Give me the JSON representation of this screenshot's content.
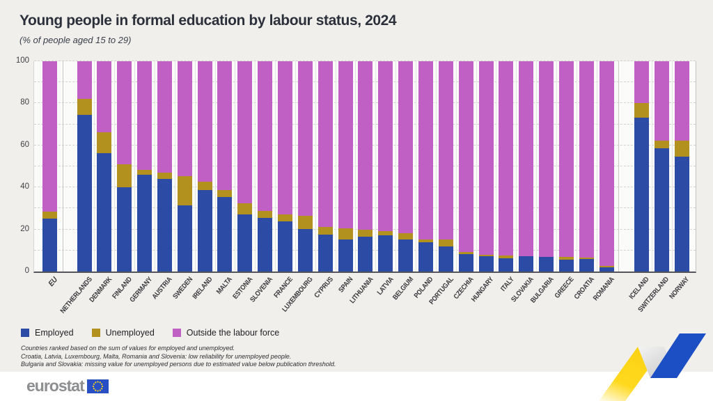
{
  "header": {
    "title": "Young people in formal education by labour status, 2024",
    "subtitle": "(% of people aged 15 to 29)"
  },
  "chart_data": {
    "type": "bar",
    "stacked": true,
    "unit": "% of people aged 15 to 29",
    "title": "Young people in formal education by labour status, 2024",
    "ylim": [
      0,
      100
    ],
    "yticks": [
      0,
      20,
      40,
      60,
      80,
      100
    ],
    "grid": "horizontal dashed lines every 10 units",
    "legend_position": "bottom-left",
    "categories": [
      "EU",
      "NETHERLANDS",
      "DENMARK",
      "FINLAND",
      "GERMANY",
      "AUSTRIA",
      "SWEDEN",
      "IRELAND",
      "MALTA",
      "ESTONIA",
      "SLOVENIA",
      "FRANCE",
      "LUXEMBOURG",
      "CYPRUS",
      "SPAIN",
      "LITHUANIA",
      "LATVIA",
      "BELGIUM",
      "POLAND",
      "PORTUGAL",
      "CZECHIA",
      "HUNGARY",
      "ITALY",
      "SLOVAKIA",
      "BULGARIA",
      "GREECE",
      "CROATIA",
      "ROMANIA",
      "ICELAND",
      "SWITZERLAND",
      "NORWAY"
    ],
    "groups": [
      {
        "name": "eu-aggregate",
        "category_indices": [
          0
        ]
      },
      {
        "name": "eu-members",
        "category_indices": [
          1,
          2,
          3,
          4,
          5,
          6,
          7,
          8,
          9,
          10,
          11,
          12,
          13,
          14,
          15,
          16,
          17,
          18,
          19,
          20,
          21,
          22,
          23,
          24,
          25,
          26,
          27
        ]
      },
      {
        "name": "efta",
        "category_indices": [
          28,
          29,
          30
        ]
      }
    ],
    "series": [
      {
        "name": "Employed",
        "color": "#2b4ba5",
        "values": [
          25.1,
          74.4,
          56.4,
          40.2,
          46.1,
          44.0,
          31.3,
          38.7,
          35.5,
          27.2,
          25.6,
          23.7,
          20.3,
          17.6,
          15.4,
          16.7,
          17.2,
          15.4,
          14.0,
          11.9,
          8.2,
          7.3,
          6.4,
          7.2,
          6.9,
          5.6,
          6.0,
          2.1,
          73.3,
          58.6,
          54.7
        ]
      },
      {
        "name": "Unemployed",
        "color": "#b2911f",
        "values": [
          3.3,
          7.6,
          9.9,
          10.7,
          2.4,
          3.1,
          14.2,
          4.0,
          3.1,
          5.2,
          3.2,
          3.5,
          6.3,
          3.5,
          5.0,
          3.3,
          2.0,
          2.9,
          1.4,
          3.4,
          1.1,
          0.8,
          1.3,
          null,
          null,
          1.2,
          0.7,
          0.7,
          7.0,
          3.6,
          7.5
        ]
      },
      {
        "name": "Outside the labour force",
        "color": "#c160c4",
        "values": [
          71.6,
          18.0,
          33.7,
          49.1,
          51.5,
          52.9,
          54.5,
          57.3,
          61.4,
          67.6,
          71.2,
          72.8,
          73.4,
          78.9,
          79.6,
          80.0,
          80.8,
          81.7,
          84.6,
          84.7,
          90.7,
          91.9,
          92.3,
          92.8,
          93.1,
          93.2,
          93.3,
          97.2,
          19.7,
          37.8,
          37.8
        ]
      }
    ]
  },
  "footnotes": [
    "Countries ranked based on the sum of values for employed and unemployed.",
    "Croatia, Latvia, Luxembourg, Malta, Romania and Slovenia: low reliability for unemployed people.",
    "Bulgaria and Slovakia: missing value for unemployed persons due to estimated value below publication threshold."
  ],
  "footer": {
    "logo_text": "eurostat"
  },
  "page_colors": {
    "background": "#f0efec",
    "plot_background": "#fbfbfa",
    "axis_line": "#54555b",
    "ribbon_yellow": "#ffd61e",
    "ribbon_blue": "#1d4fc4"
  }
}
